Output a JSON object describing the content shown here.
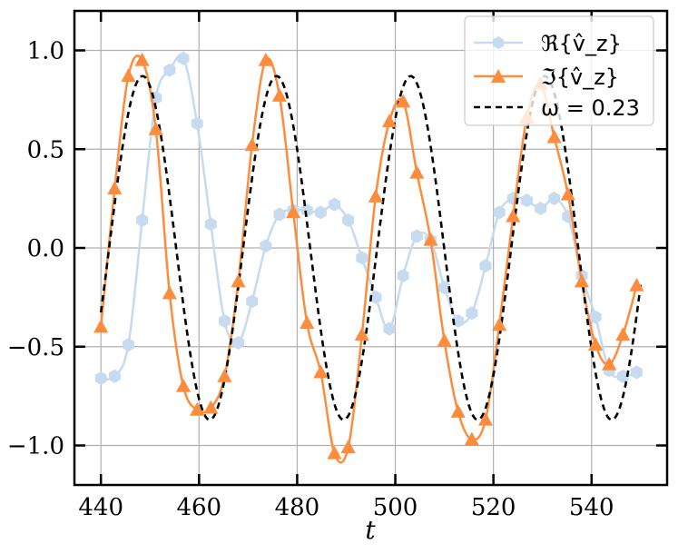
{
  "chart_data": {
    "type": "line",
    "xlabel": "t",
    "ylabel": "",
    "xlim": [
      434.6,
      555.4
    ],
    "ylim": [
      -1.2,
      1.2
    ],
    "xticks": [
      440,
      460,
      480,
      500,
      520,
      540
    ],
    "yticks": [
      -1.0,
      -0.5,
      0.0,
      0.5,
      1.0
    ],
    "xtick_labels": [
      "440",
      "460",
      "480",
      "500",
      "520",
      "540"
    ],
    "ytick_labels": [
      "−1.0",
      "−0.5",
      "0.0",
      "0.5",
      "1.0"
    ],
    "grid": true,
    "legend_position": "top-right",
    "series": [
      {
        "name": "ℜ{v̂_z}",
        "color": "#c6dbef",
        "marker": "hexagon",
        "line": "solid",
        "x": [
          440,
          442.8,
          445.6,
          448.4,
          451.2,
          454,
          456.8,
          459.6,
          462.4,
          465.2,
          468,
          470.8,
          473.6,
          476.4,
          479.2,
          482,
          484.8,
          487.6,
          490.4,
          493.2,
          496,
          498.8,
          501.6,
          504.4,
          507.2,
          510,
          512.8,
          515.6,
          518.4,
          521.2,
          524,
          526.8,
          529.6,
          532.4,
          535.2,
          538,
          540.8,
          543.6,
          546.4,
          549.2
        ],
        "y": [
          -0.66,
          -0.65,
          -0.49,
          0.14,
          0.76,
          0.9,
          0.96,
          0.63,
          0.12,
          -0.37,
          -0.48,
          -0.27,
          0.01,
          0.17,
          0.19,
          0.19,
          0.18,
          0.22,
          0.14,
          -0.05,
          -0.25,
          -0.41,
          -0.14,
          0.06,
          0.04,
          -0.2,
          -0.37,
          -0.33,
          -0.09,
          0.18,
          0.25,
          0.24,
          0.2,
          0.25,
          0.16,
          -0.14,
          -0.35,
          -0.62,
          -0.65,
          -0.63
        ]
      },
      {
        "name": "ℑ{v̂_z}",
        "color": "#fd8d3c",
        "marker": "triangle",
        "line": "solid",
        "x": [
          440,
          442.8,
          445.6,
          448.4,
          451.2,
          454,
          456.8,
          459.6,
          462.4,
          465.2,
          468,
          470.8,
          473.6,
          476.4,
          479.2,
          482,
          484.8,
          487.6,
          490.4,
          493.2,
          496,
          498.8,
          501.6,
          504.4,
          507.2,
          510,
          512.8,
          515.6,
          518.4,
          521.2,
          524,
          526.8,
          529.6,
          532.4,
          535.2,
          538,
          540.8,
          543.6,
          546.4,
          549.2
        ],
        "y": [
          -0.4,
          0.3,
          0.87,
          0.95,
          0.6,
          -0.23,
          -0.7,
          -0.82,
          -0.81,
          -0.65,
          -0.17,
          0.52,
          0.95,
          0.77,
          0.18,
          -0.38,
          -0.63,
          -1.04,
          -1.01,
          -0.44,
          0.26,
          0.64,
          0.74,
          0.38,
          0.04,
          -0.47,
          -0.83,
          -0.97,
          -0.87,
          -0.39,
          0.16,
          0.66,
          0.83,
          0.56,
          0.27,
          -0.17,
          -0.49,
          -0.59,
          -0.44,
          -0.19
        ]
      },
      {
        "name": "ω = 0.23",
        "color": "#000000",
        "line": "dashed",
        "function": {
          "amplitude": 0.87,
          "omega": 0.23,
          "peak_t": 448.5,
          "t_start": 440,
          "t_end": 550
        }
      }
    ]
  },
  "legend": {
    "items": [
      {
        "label": "ℜ{v̂_z}"
      },
      {
        "label": "ℑ{v̂_z}"
      },
      {
        "label": "ω = 0.23"
      }
    ]
  }
}
